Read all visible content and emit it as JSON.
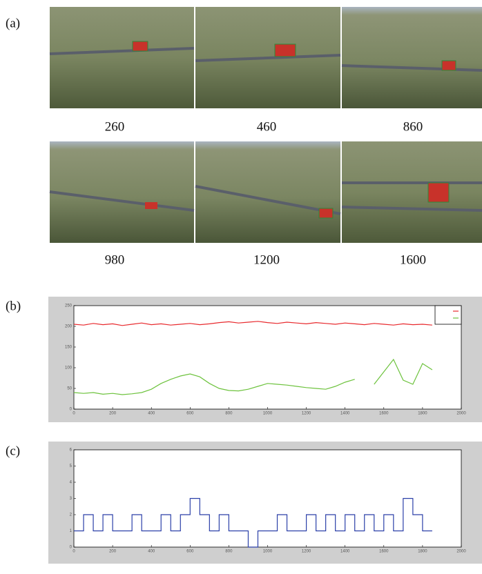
{
  "figure": {
    "panel_labels": [
      "(a)",
      "(b)",
      "(c)"
    ],
    "frames": [
      "260",
      "460",
      "860",
      "980",
      "1200",
      "1600"
    ]
  },
  "chart_data": [
    {
      "type": "line",
      "x": [
        0,
        50,
        100,
        150,
        200,
        250,
        300,
        350,
        400,
        450,
        500,
        550,
        600,
        650,
        700,
        750,
        800,
        850,
        900,
        950,
        1000,
        1050,
        1100,
        1150,
        1200,
        1250,
        1300,
        1350,
        1400,
        1450,
        1500,
        1550,
        1600,
        1650,
        1700,
        1750,
        1800,
        1850
      ],
      "series": [
        {
          "color": "#e8282c",
          "values": [
            205,
            203,
            207,
            204,
            206,
            202,
            205,
            208,
            204,
            206,
            203,
            205,
            207,
            204,
            206,
            209,
            211,
            208,
            210,
            212,
            209,
            207,
            210,
            208,
            206,
            209,
            207,
            205,
            208,
            206,
            204,
            207,
            205,
            203,
            206,
            204,
            205,
            203
          ]
        },
        {
          "color": "#6cc23c",
          "values": [
            40,
            38,
            40,
            36,
            38,
            35,
            37,
            40,
            48,
            62,
            72,
            80,
            85,
            78,
            62,
            50,
            45,
            44,
            48,
            55,
            62,
            60,
            58,
            55,
            52,
            50,
            48,
            55,
            65,
            72,
            null,
            60,
            90,
            120,
            70,
            60,
            110,
            95
          ]
        }
      ],
      "xlim": [
        0,
        2000
      ],
      "xticks": [
        0,
        200,
        400,
        600,
        800,
        1000,
        1200,
        1400,
        1600,
        1800,
        2000
      ],
      "ylim": [
        0,
        250
      ],
      "yticks": [
        0,
        50,
        100,
        150,
        200,
        250
      ],
      "legend": "upper right"
    },
    {
      "type": "step",
      "x": [
        0,
        50,
        100,
        150,
        200,
        250,
        300,
        350,
        400,
        450,
        500,
        550,
        600,
        650,
        700,
        750,
        800,
        850,
        900,
        950,
        1000,
        1050,
        1100,
        1150,
        1200,
        1250,
        1300,
        1350,
        1400,
        1450,
        1500,
        1550,
        1600,
        1650,
        1700,
        1750,
        1800,
        1850
      ],
      "series": [
        {
          "color": "#2a3fa8",
          "values": [
            1,
            2,
            1,
            2,
            1,
            1,
            2,
            1,
            1,
            2,
            1,
            2,
            3,
            2,
            1,
            2,
            1,
            1,
            0,
            1,
            1,
            2,
            1,
            1,
            2,
            1,
            2,
            1,
            2,
            1,
            2,
            1,
            2,
            1,
            3,
            2,
            1,
            1
          ]
        }
      ],
      "xlim": [
        0,
        2000
      ],
      "xticks": [
        0,
        200,
        400,
        600,
        800,
        1000,
        1200,
        1400,
        1600,
        1800,
        2000
      ],
      "ylim": [
        0,
        6
      ],
      "yticks": [
        0,
        1,
        2,
        3,
        4,
        5,
        6
      ]
    }
  ]
}
